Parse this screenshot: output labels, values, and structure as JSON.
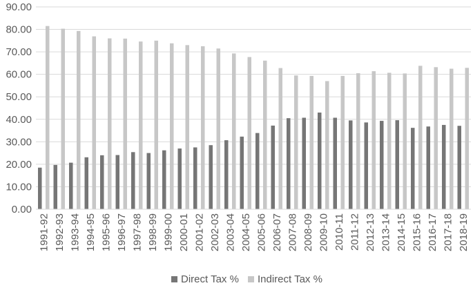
{
  "chart_data": {
    "type": "bar",
    "title": "",
    "xlabel": "",
    "ylabel": "",
    "ylim": [
      0,
      90
    ],
    "yticks": [
      "0.00",
      "10.00",
      "20.00",
      "30.00",
      "40.00",
      "50.00",
      "60.00",
      "70.00",
      "80.00",
      "90.00"
    ],
    "grid": true,
    "legend_position": "bottom",
    "categories": [
      "1991-92",
      "1992-93",
      "1993-94",
      "1994-95",
      "1995-96",
      "1996-97",
      "1997-98",
      "1998-99",
      "1999-00",
      "2000-01",
      "2001-02",
      "2002-03",
      "2003-04",
      "2004-05",
      "2005-06",
      "2006-07",
      "2007-08",
      "2008-09",
      "2009-10",
      "2010-11",
      "2011-12",
      "2012-13",
      "2013-14",
      "2014-15",
      "2015-16",
      "2016-17",
      "2017-18",
      "2018-19"
    ],
    "series": [
      {
        "name": "Direct Tax %",
        "color": "#767676",
        "values": [
          18.5,
          19.7,
          20.7,
          23.1,
          24.0,
          24.1,
          25.4,
          25.0,
          26.2,
          27.0,
          27.5,
          28.5,
          30.7,
          32.3,
          33.9,
          37.2,
          40.5,
          40.7,
          43.0,
          40.7,
          39.5,
          38.6,
          39.3,
          39.6,
          36.2,
          36.8,
          37.5,
          37.1
        ]
      },
      {
        "name": "Indirect Tax %",
        "color": "#c7c7c7",
        "values": [
          81.5,
          80.3,
          79.3,
          76.9,
          76.0,
          75.9,
          74.6,
          75.0,
          73.8,
          73.0,
          72.5,
          71.5,
          69.3,
          67.7,
          66.1,
          62.8,
          59.5,
          59.3,
          57.0,
          59.3,
          60.5,
          61.4,
          60.7,
          60.4,
          63.8,
          63.2,
          62.5,
          62.9
        ]
      }
    ]
  }
}
